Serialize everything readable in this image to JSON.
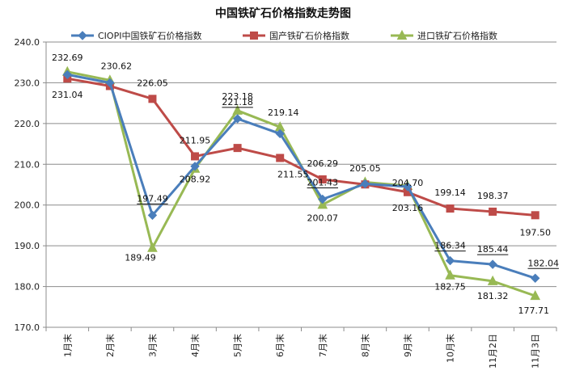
{
  "chart_data": {
    "type": "line",
    "title": "中国铁矿石价格指数走势图",
    "categories": [
      "1月末",
      "2月末",
      "3月末",
      "4月末",
      "5月末",
      "6月末",
      "7月末",
      "8月末",
      "9月末",
      "10月末",
      "11月2日",
      "11月3日"
    ],
    "ylim": [
      170,
      240
    ],
    "yticks": [
      "170.0",
      "180.0",
      "190.0",
      "200.0",
      "210.0",
      "220.0",
      "230.0",
      "240.0"
    ],
    "grid": true,
    "legend_position": "top",
    "series": [
      {
        "name": "CIOPI中国铁矿石价格指数",
        "color": "#4a7ebb",
        "marker": "diamond",
        "values": [
          232.0,
          230.0,
          197.49,
          209.5,
          221.18,
          217.5,
          201.43,
          205.2,
          204.5,
          186.34,
          185.44,
          182.04
        ],
        "labels": [
          null,
          null,
          "197.49",
          null,
          "221.18",
          null,
          "201.43",
          null,
          null,
          "186.34",
          "185.44",
          "182.04"
        ]
      },
      {
        "name": "国产铁矿石价格指数",
        "color": "#be4b48",
        "marker": "square",
        "values": [
          231.04,
          229.2,
          226.05,
          211.95,
          214.0,
          211.55,
          206.29,
          205.05,
          203.16,
          199.14,
          198.37,
          197.5
        ],
        "labels": [
          "231.04",
          null,
          "226.05",
          "211.95",
          null,
          "211.55",
          "206.29",
          "205.05",
          "203.16",
          "199.14",
          "198.37",
          "197.50"
        ]
      },
      {
        "name": "进口铁矿石价格指数",
        "color": "#98b954",
        "marker": "triangle",
        "values": [
          232.69,
          230.62,
          189.49,
          208.92,
          223.18,
          219.14,
          200.07,
          205.6,
          204.7,
          182.75,
          181.32,
          177.71
        ],
        "labels": [
          "232.69",
          "230.62",
          "189.49",
          "208.92",
          "223.18",
          "219.14",
          "200.07",
          null,
          "204.70",
          "182.75",
          "181.32",
          "177.71"
        ]
      }
    ]
  }
}
